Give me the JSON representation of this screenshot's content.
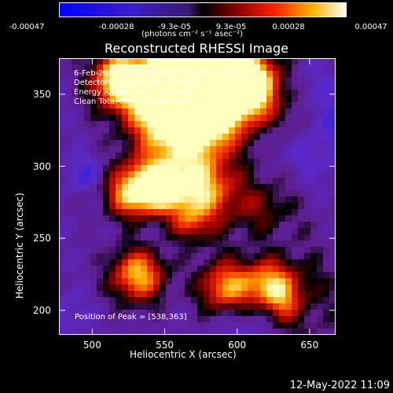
{
  "colorbar": {
    "ticks": [
      "-0.00047",
      "-0.00028",
      "-9.3e-05",
      "9.3e-05",
      "0.00028",
      "0.00047"
    ],
    "units": "(photons cm⁻² s⁻¹ asec⁻²)"
  },
  "chart_data": {
    "type": "heatmap",
    "title": "Reconstructed RHESSI Image",
    "xlabel": "Heliocentric X (arcsec)",
    "ylabel": "Heliocentric Y (arcsec)",
    "xlim": [
      477,
      668
    ],
    "ylim": [
      183,
      375
    ],
    "xticks": [
      500,
      550,
      600,
      650
    ],
    "yticks": [
      200,
      250,
      300,
      350
    ],
    "colorscale": "rhessi-diverging (blue-purple-red-yellow-white)",
    "clim": [
      -0.00047,
      0.00047
    ],
    "annotations": [
      "6-Feb-2014 04:24:48.000 to 04:28:48.000",
      "Detectors: 3F 4F 5F 6F 7F 8F 9F 1",
      "Energy Range: 25.0 - 50.0 keV",
      "Clean     Total counts: 9.80E+03"
    ],
    "peak_label": "Position of Peak = [538,363]"
  },
  "footer": {
    "timestamp": "12-May-2022 11:09"
  }
}
